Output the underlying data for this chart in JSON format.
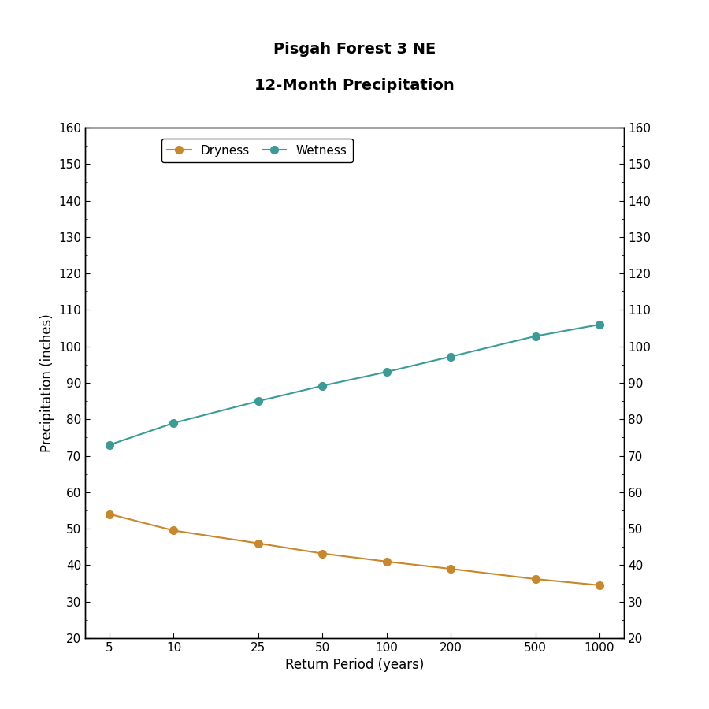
{
  "title_line1": "Pisgah Forest 3 NE",
  "title_line2": "12-Month Precipitation",
  "xlabel": "Return Period (years)",
  "ylabel": "Precipitation (inches)",
  "x_values": [
    5,
    10,
    25,
    50,
    100,
    200,
    500,
    1000
  ],
  "x_ticks": [
    5,
    10,
    25,
    50,
    100,
    200,
    500,
    1000
  ],
  "dryness_values": [
    54.0,
    49.5,
    46.0,
    43.2,
    41.0,
    39.0,
    36.2,
    34.5
  ],
  "wetness_values": [
    73.0,
    79.0,
    85.0,
    89.2,
    93.0,
    97.2,
    102.8,
    106.0
  ],
  "dryness_color": "#C8872A",
  "wetness_color": "#3A9C96",
  "ylim": [
    20,
    160
  ],
  "yticks": [
    20,
    30,
    40,
    50,
    60,
    70,
    80,
    90,
    100,
    110,
    120,
    130,
    140,
    150,
    160
  ],
  "bg_color": "#FFFFFF",
  "plot_bg_color": "#FFFFFF",
  "title_fontsize": 14,
  "label_fontsize": 12,
  "tick_fontsize": 11,
  "legend_fontsize": 11,
  "linewidth": 1.5,
  "markersize": 7
}
